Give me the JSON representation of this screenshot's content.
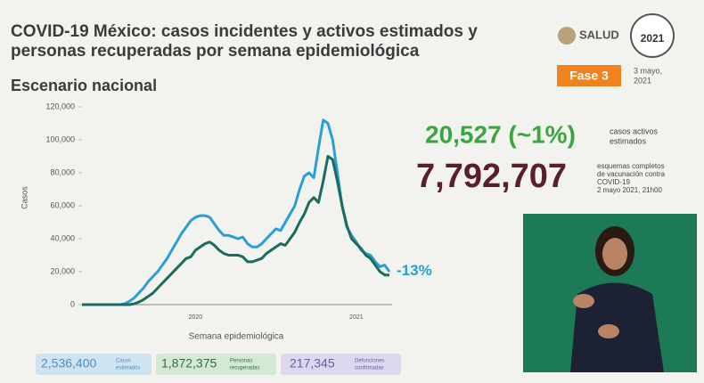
{
  "chart_data": {
    "type": "line",
    "title": "COVID-19 México: casos incidentes y activos estimados y",
    "title_line2": "personas recuperadas por semana epidemiológica",
    "subtitle": "Escenario nacional",
    "y_label": "Casos",
    "x_label": "Semana epidemiológica",
    "annotation": "-13%",
    "ylim": [
      0,
      120000
    ],
    "yticks": [
      0,
      {
        "value": 20000,
        "label": "20,000"
      },
      {
        "value": 40000,
        "label": "40,000"
      },
      {
        "value": 60000,
        "label": "60,000"
      },
      {
        "value": 80000,
        "label": "80,000"
      },
      {
        "value": 100000,
        "label": "100,000"
      },
      {
        "value": 120000,
        "label": "120,000"
      }
    ],
    "categories": [
      null,
      null,
      null,
      null,
      null,
      null,
      null,
      null,
      null,
      null,
      null,
      null,
      null,
      null,
      null,
      null,
      null,
      null,
      null,
      null,
      null,
      null,
      null,
      null,
      "2020",
      null,
      null,
      null,
      null,
      null,
      null,
      null,
      null,
      null,
      null,
      null,
      null,
      null,
      null,
      null,
      null,
      null,
      null,
      null,
      null,
      null,
      null,
      null,
      null,
      null,
      null,
      null,
      null,
      null,
      null,
      null,
      null,
      null,
      "2021",
      null,
      null,
      null,
      null,
      null,
      null,
      null
    ],
    "series": [
      {
        "color": "#2a9fd6",
        "values": [
          0,
          0,
          0,
          0,
          0,
          0,
          0,
          0,
          0,
          500,
          2000,
          4000,
          7000,
          10000,
          14000,
          17000,
          20000,
          24000,
          28000,
          33000,
          38000,
          43000,
          47000,
          51000,
          53000,
          54000,
          54000,
          53000,
          49000,
          45000,
          42000,
          42000,
          41000,
          40000,
          41000,
          37000,
          35000,
          35000,
          37000,
          40000,
          43000,
          46000,
          45000,
          50000,
          55000,
          60000,
          70000,
          78000,
          80000,
          77000,
          95000,
          112000,
          110000,
          100000,
          80000,
          60000,
          47000,
          42000,
          38000,
          33000,
          31000,
          30000,
          26000,
          23000,
          24000,
          20000
        ]
      },
      {
        "color": "#1b6b5e",
        "values": [
          0,
          0,
          0,
          0,
          0,
          0,
          0,
          0,
          0,
          0,
          0,
          500,
          1500,
          3000,
          5000,
          7000,
          10000,
          13000,
          16000,
          19000,
          22000,
          25000,
          28000,
          29000,
          33000,
          35000,
          37000,
          38000,
          36000,
          33000,
          31000,
          30000,
          30000,
          30000,
          29000,
          26000,
          26000,
          27000,
          28000,
          31000,
          33000,
          35000,
          37000,
          36000,
          40000,
          44000,
          50000,
          55000,
          62000,
          65000,
          62000,
          75000,
          90000,
          88000,
          75000,
          60000,
          48000,
          40000,
          37000,
          34000,
          30000,
          28000,
          24000,
          20000,
          18000,
          18000
        ]
      }
    ]
  },
  "header": {
    "brand": "SALUD",
    "logo_year": "2021",
    "phase": "Fase 3",
    "date_line1": "3 mayo,",
    "date_line2": "2021"
  },
  "stats": {
    "active": {
      "value": "20,527 (~1%)",
      "label1": "casos activos",
      "label2": "estimados"
    },
    "vaccination": {
      "value": "7,792,707",
      "label1": "esquemas completos",
      "label2": "de vacunación contra",
      "label3": "COVID-19",
      "label4": "2 mayo 2021, 21h00"
    },
    "boxes": [
      {
        "value": "2,536,400",
        "label1": "Casos",
        "label2": "estimados"
      },
      {
        "value": "1,872,375",
        "label1": "Personas",
        "label2": "recuperadas"
      },
      {
        "value": "217,345",
        "label1": "Defunciones",
        "label2": "confirmadas"
      }
    ]
  }
}
